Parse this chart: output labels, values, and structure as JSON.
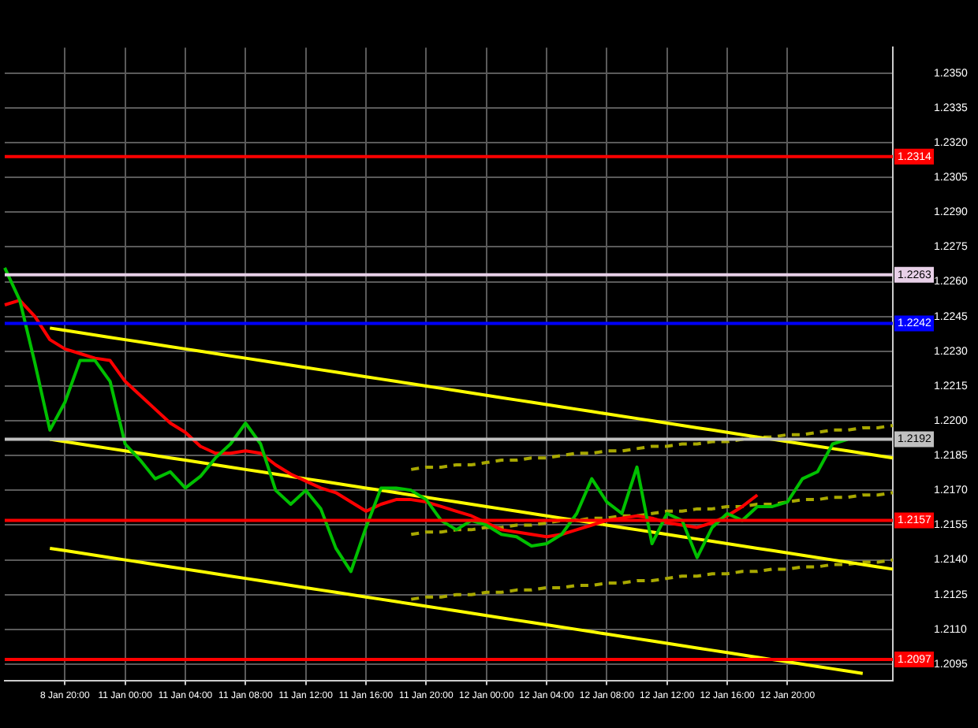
{
  "chart_data": {
    "type": "line",
    "ylim": [
      1.2088,
      1.2361
    ],
    "categories": [
      null,
      null,
      null,
      null,
      "8 Jan 20:00",
      null,
      null,
      null,
      "11 Jan 00:00",
      null,
      null,
      null,
      "11 Jan 04:00",
      null,
      null,
      null,
      "11 Jan 08:00",
      null,
      null,
      null,
      "11 Jan 12:00",
      null,
      null,
      null,
      "11 Jan 16:00",
      null,
      null,
      null,
      "11 Jan 20:00",
      null,
      null,
      null,
      "12 Jan 00:00",
      null,
      null,
      null,
      "12 Jan 04:00",
      null,
      null,
      null,
      "12 Jan 08:00",
      null,
      null,
      null,
      "12 Jan 12:00",
      null,
      null,
      null,
      "12 Jan 16:00",
      null,
      null,
      null,
      "12 Jan 20:00",
      null,
      null,
      null,
      null,
      null,
      null,
      null
    ],
    "yticks": [
      {
        "value": 1.235,
        "label": "1.2350"
      },
      {
        "value": 1.2335,
        "label": "1.2335"
      },
      {
        "value": 1.232,
        "label": "1.2320"
      },
      {
        "value": 1.2305,
        "label": "1.2305"
      },
      {
        "value": 1.229,
        "label": "1.2290"
      },
      {
        "value": 1.2275,
        "label": "1.2275"
      },
      {
        "value": 1.226,
        "label": "1.2260"
      },
      {
        "value": 1.2245,
        "label": "1.2245"
      },
      {
        "value": 1.223,
        "label": "1.2230"
      },
      {
        "value": 1.2215,
        "label": "1.2215"
      },
      {
        "value": 1.22,
        "label": "1.2200"
      },
      {
        "value": 1.2185,
        "label": "1.2185"
      },
      {
        "value": 1.217,
        "label": "1.2170"
      },
      {
        "value": 1.2155,
        "label": "1.2155"
      },
      {
        "value": 1.214,
        "label": "1.2140"
      },
      {
        "value": 1.2125,
        "label": "1.2125"
      },
      {
        "value": 1.211,
        "label": "1.2110"
      },
      {
        "value": 1.2095,
        "label": "1.2095"
      }
    ],
    "grid": true,
    "marker": "none",
    "legend": false,
    "ref_lines": [
      {
        "axis": "y",
        "value": 1.2314,
        "label": "1.2314",
        "color": "#ff0000"
      },
      {
        "axis": "y",
        "value": 1.2263,
        "label": "1.2263",
        "color": "#e8d0e8"
      },
      {
        "axis": "y",
        "value": 1.2242,
        "label": "1.2242",
        "color": "#0000ff"
      },
      {
        "axis": "y",
        "value": 1.2192,
        "label": "1.2192",
        "color": "#c0c0c0"
      },
      {
        "axis": "y",
        "value": 1.2157,
        "label": "1.2157",
        "color": "#ff0000"
      },
      {
        "axis": "y",
        "value": 1.2097,
        "label": "1.2097",
        "color": "#ff0000"
      }
    ],
    "series": [
      {
        "color": "#00c000",
        "values": [
          1.2266,
          1.2252,
          1.2225,
          1.2196,
          1.2208,
          1.2226,
          1.2226,
          1.2217,
          1.219,
          1.2183,
          1.2175,
          1.2178,
          1.2171,
          1.2176,
          1.2184,
          1.219,
          1.2199,
          1.219,
          1.217,
          1.2164,
          1.217,
          1.2162,
          1.2145,
          1.2135,
          1.2154,
          1.2171,
          1.2171,
          1.217,
          1.2166,
          1.2157,
          1.2153,
          1.2157,
          1.2155,
          1.2151,
          1.215,
          1.2146,
          1.2147,
          1.2151,
          1.216,
          1.2175,
          1.2165,
          1.216,
          1.218,
          1.2147,
          1.216,
          1.2157,
          1.2141,
          1.2154,
          1.216,
          1.2157,
          1.2163,
          1.2163,
          1.2165,
          1.2175,
          1.2178,
          1.219,
          1.2192,
          null,
          null,
          null
        ]
      },
      {
        "color": "#ff0000",
        "values": [
          1.225,
          1.2252,
          1.2245,
          1.2235,
          1.2231,
          1.2229,
          1.2227,
          1.2226,
          1.2217,
          1.2211,
          1.2205,
          1.2199,
          1.2195,
          1.2189,
          1.2186,
          1.2186,
          1.2187,
          1.2186,
          1.2181,
          1.2177,
          1.2174,
          1.2171,
          1.2169,
          1.2165,
          1.2161,
          1.2164,
          1.2166,
          1.2166,
          1.2165,
          1.2163,
          1.2161,
          1.2159,
          1.2156,
          1.2153,
          1.2152,
          1.2151,
          1.215,
          1.2151,
          1.2153,
          1.2155,
          1.2157,
          1.2158,
          1.2159,
          1.2158,
          1.2156,
          1.2155,
          1.2154,
          1.2156,
          1.2159,
          1.2163,
          1.2168,
          null,
          null,
          null,
          null,
          null,
          null,
          null,
          null,
          null
        ]
      },
      {
        "color": "#ffff00",
        "values": [
          null,
          null,
          null,
          1.224,
          1.2239,
          1.2238,
          1.2237,
          1.2236,
          1.2235,
          1.2234,
          1.2233,
          1.2232,
          1.2231,
          1.223,
          1.2229,
          1.2228,
          1.2227,
          1.2226,
          1.2225,
          1.2224,
          1.2223,
          1.2222,
          1.2221,
          1.222,
          1.2219,
          1.2218,
          1.2217,
          1.2216,
          1.2215,
          1.2214,
          1.2213,
          1.2212,
          1.2211,
          1.221,
          1.2209,
          1.2208,
          1.2207,
          1.2206,
          1.2205,
          1.2204,
          1.2203,
          1.2202,
          1.2201,
          1.22,
          1.2199,
          1.2198,
          1.2197,
          1.2196,
          1.2195,
          1.2194,
          1.2193,
          1.2192,
          1.2191,
          1.219,
          1.2189,
          1.2188,
          1.2187,
          1.2186,
          1.2185,
          1.2184
        ]
      },
      {
        "color": "#ffff00",
        "values": [
          null,
          null,
          null,
          1.2192,
          1.2191,
          1.219,
          1.2189,
          1.2188,
          1.2187,
          1.2186,
          1.2185,
          1.2184,
          1.2183,
          1.2182,
          1.2181,
          1.218,
          1.2179,
          1.2178,
          1.2177,
          1.2176,
          1.2175,
          1.2174,
          1.2173,
          1.2172,
          1.2171,
          1.217,
          1.2169,
          1.2168,
          1.2167,
          1.2166,
          1.2165,
          1.2164,
          1.2163,
          1.2162,
          1.2161,
          1.216,
          1.2159,
          1.2158,
          1.2157,
          1.2156,
          1.2155,
          1.2154,
          1.2153,
          1.2152,
          1.2151,
          1.215,
          1.2149,
          1.2148,
          1.2147,
          1.2146,
          1.2145,
          1.2144,
          1.2143,
          1.2142,
          1.2141,
          1.214,
          1.2139,
          1.2138,
          1.2137,
          1.2136
        ]
      },
      {
        "color": "#ffff00",
        "values": [
          null,
          null,
          null,
          1.2145,
          1.2144,
          1.2143,
          1.2142,
          1.2141,
          1.214,
          1.2139,
          1.2138,
          1.2137,
          1.2136,
          1.2135,
          1.2134,
          1.2133,
          1.2132,
          1.2131,
          1.213,
          1.2129,
          1.2128,
          1.2127,
          1.2126,
          1.2125,
          1.2124,
          1.2123,
          1.2122,
          1.2121,
          1.212,
          1.2119,
          1.2118,
          1.2117,
          1.2116,
          1.2115,
          1.2114,
          1.2113,
          1.2112,
          1.2111,
          1.211,
          1.2109,
          1.2108,
          1.2107,
          1.2106,
          1.2105,
          1.2104,
          1.2103,
          1.2102,
          1.2101,
          1.21,
          1.2099,
          1.2098,
          1.2097,
          1.2096,
          1.2095,
          1.2094,
          1.2093,
          1.2092,
          1.2091,
          null,
          null
        ]
      },
      {
        "color": "#a8a800",
        "line_style": "dashed",
        "values": [
          null,
          null,
          null,
          null,
          null,
          null,
          null,
          null,
          null,
          null,
          null,
          null,
          null,
          null,
          null,
          null,
          null,
          null,
          null,
          null,
          null,
          null,
          null,
          null,
          null,
          null,
          null,
          1.2179,
          1.218,
          1.218,
          1.2181,
          1.2181,
          1.2182,
          1.2183,
          1.2183,
          1.2184,
          1.2184,
          1.2185,
          1.2186,
          1.2186,
          1.2187,
          1.2187,
          1.2188,
          1.2189,
          1.2189,
          1.219,
          1.219,
          1.2191,
          1.2191,
          1.2192,
          1.2193,
          1.2193,
          1.2194,
          1.2194,
          1.2195,
          1.2196,
          1.2196,
          1.2197,
          1.2197,
          1.2198
        ]
      },
      {
        "color": "#a8a800",
        "line_style": "dashed",
        "values": [
          null,
          null,
          null,
          null,
          null,
          null,
          null,
          null,
          null,
          null,
          null,
          null,
          null,
          null,
          null,
          null,
          null,
          null,
          null,
          null,
          null,
          null,
          null,
          null,
          null,
          null,
          null,
          1.2151,
          1.2152,
          1.2152,
          1.2153,
          1.2153,
          1.2154,
          1.2154,
          1.2155,
          1.2155,
          1.2156,
          1.2157,
          1.2157,
          1.2158,
          1.2158,
          1.2159,
          1.2159,
          1.216,
          1.2161,
          1.2161,
          1.2162,
          1.2162,
          1.2163,
          1.2163,
          1.2164,
          1.2164,
          1.2165,
          1.2166,
          1.2166,
          1.2167,
          1.2167,
          1.2168,
          1.2168,
          1.2169
        ]
      },
      {
        "color": "#a8a800",
        "line_style": "dashed",
        "values": [
          null,
          null,
          null,
          null,
          null,
          null,
          null,
          null,
          null,
          null,
          null,
          null,
          null,
          null,
          null,
          null,
          null,
          null,
          null,
          null,
          null,
          null,
          null,
          null,
          null,
          null,
          null,
          1.2123,
          1.2124,
          1.2124,
          1.2125,
          1.2125,
          1.2126,
          1.2126,
          1.2127,
          1.2127,
          1.2128,
          1.2128,
          1.2129,
          1.2129,
          1.213,
          1.213,
          1.2131,
          1.2131,
          1.2132,
          1.2133,
          1.2133,
          1.2134,
          1.2134,
          1.2135,
          1.2135,
          1.2136,
          1.2136,
          1.2137,
          1.2137,
          1.2138,
          1.2138,
          1.2139,
          1.2139,
          1.214
        ]
      }
    ]
  }
}
